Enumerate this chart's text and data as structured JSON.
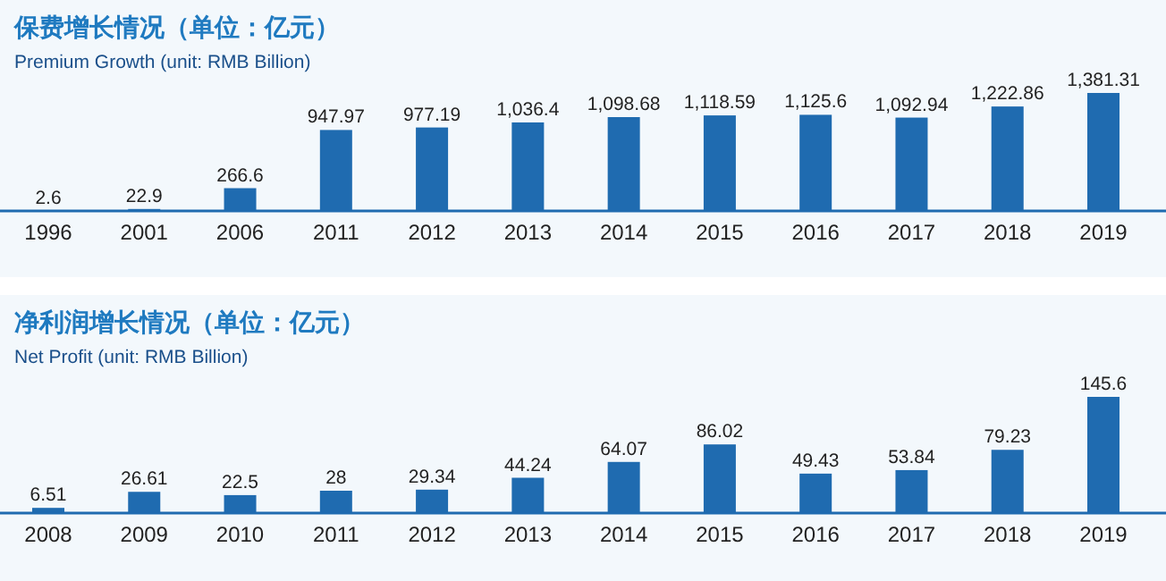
{
  "chart_data": [
    {
      "type": "bar",
      "title": "保费增长情况（单位：亿元）",
      "subtitle": "Premium Growth (unit: RMB Billion)",
      "categories": [
        "1996",
        "2001",
        "2006",
        "2011",
        "2012",
        "2013",
        "2014",
        "2015",
        "2016",
        "2017",
        "2018",
        "2019"
      ],
      "values": [
        2.6,
        22.9,
        266.6,
        947.97,
        977.19,
        1036.4,
        1098.68,
        1118.59,
        1125.6,
        1092.94,
        1222.86,
        1381.31
      ],
      "value_labels": [
        "2.6",
        "22.9",
        "266.6",
        "947.97",
        "977.19",
        "1,036.4",
        "1,098.68",
        "1,118.59",
        "1,125.6",
        "1,092.94",
        "1,222.86",
        "1,381.31"
      ],
      "color": "#1f6bb0"
    },
    {
      "type": "bar",
      "title": "净利润增长情况（单位：亿元）",
      "subtitle": "Net Profit (unit: RMB Billion)",
      "categories": [
        "2008",
        "2009",
        "2010",
        "2011",
        "2012",
        "2013",
        "2014",
        "2015",
        "2016",
        "2017",
        "2018",
        "2019"
      ],
      "values": [
        6.51,
        26.61,
        22.5,
        28,
        29.34,
        44.24,
        64.07,
        86.02,
        49.43,
        53.84,
        79.23,
        145.6
      ],
      "color": "#1f6bb0",
      "data_labels": true
    }
  ]
}
